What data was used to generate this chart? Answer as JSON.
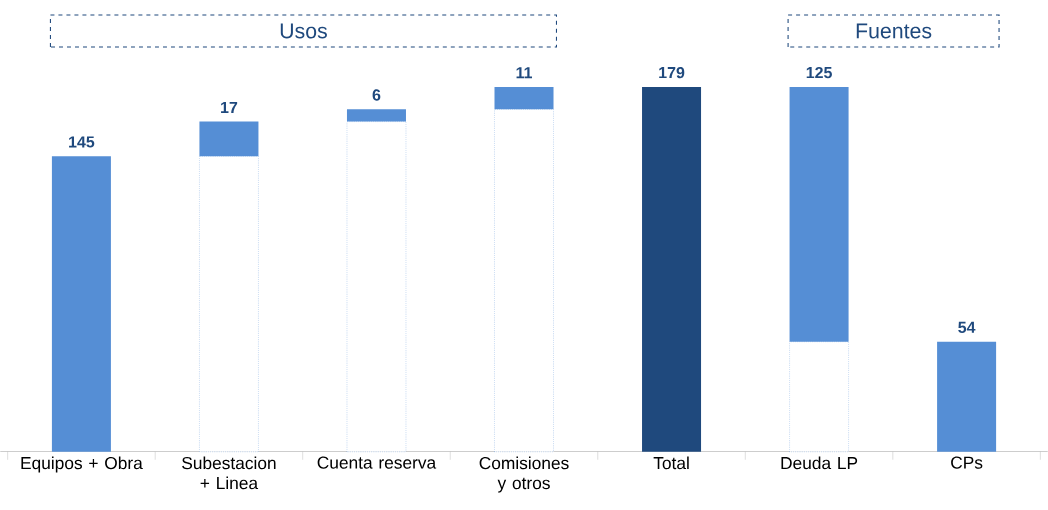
{
  "chart_data": {
    "type": "bar",
    "categories": [
      "Equipos + Obra",
      "Subestacion + Linea",
      "Cuenta reserva",
      "Comisiones y otros",
      "Total",
      "Deuda LP",
      "CPs"
    ],
    "stacked": true,
    "series": [
      {
        "color": "#ffffff",
        "line_style": "dotted",
        "values": [
          0,
          145,
          162,
          168,
          0,
          54,
          0
        ]
      },
      {
        "color": "#558ed5",
        "colors": [
          "#558ed5",
          "#558ed5",
          "#558ed5",
          "#558ed5",
          "#1f497d",
          "#558ed5",
          "#558ed5"
        ],
        "values": [
          145,
          17,
          6,
          11,
          179,
          125,
          54
        ],
        "value_labels": [
          "145",
          "17",
          "6",
          "11",
          "179",
          "125",
          "54"
        ]
      }
    ],
    "annotations": [
      "Usos",
      "Fuentes"
    ]
  }
}
